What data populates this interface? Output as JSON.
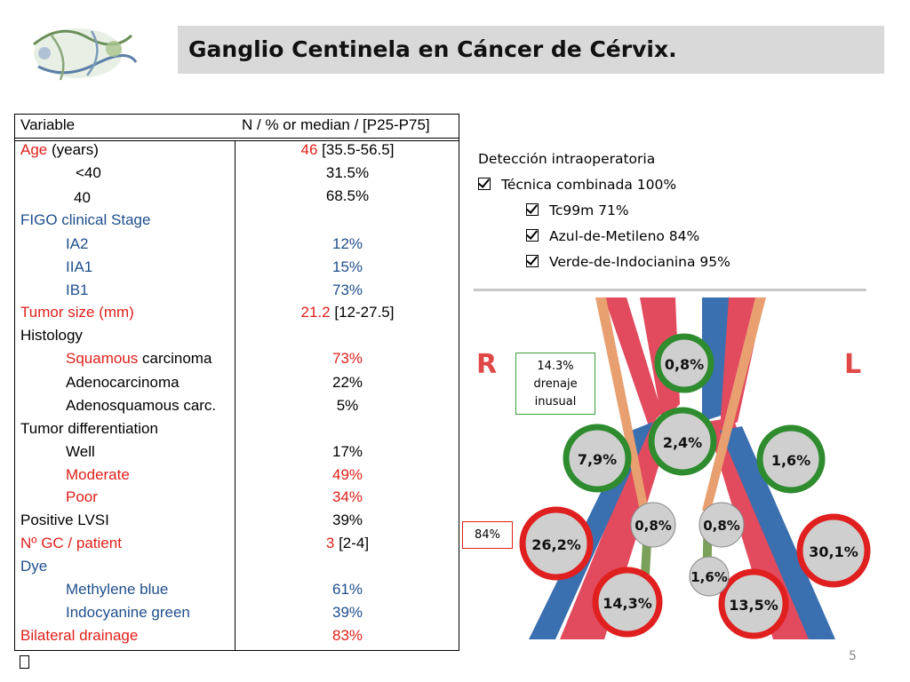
{
  "slide": {
    "title": "Ganglio Centinela en Cáncer de Cérvix.",
    "page_number": "5",
    "footer_glyph": "▯"
  },
  "table": {
    "header": {
      "variable": "Variable",
      "value": "N / % or median / [P25-P75]"
    },
    "rows": [
      {
        "label": "Age",
        "label_rest": " (years)",
        "value": "46",
        "value_rest": " [35.5-56.5]"
      },
      {
        "label": "<40",
        "value": "31.5%"
      },
      {
        "label": "40",
        "value": "68.5%"
      },
      {
        "label": "FIGO clinical Stage",
        "value": ""
      },
      {
        "label": "IA2",
        "value": "12%"
      },
      {
        "label": "IIA1",
        "value": "15%"
      },
      {
        "label": "IB1",
        "value": "73%"
      },
      {
        "label": "Tumor size (mm)",
        "value": "21.2",
        "value_rest": " [12-27.5]"
      },
      {
        "label": "Histology",
        "value": ""
      },
      {
        "label": "Squamous",
        "label_rest": " carcinoma",
        "value": "73%"
      },
      {
        "label": "Adenocarcinoma",
        "value": "22%"
      },
      {
        "label": "Adenosquamous carc.",
        "value": "5%"
      },
      {
        "label": "Tumor differentiation",
        "value": ""
      },
      {
        "label": "Well",
        "value": "17%"
      },
      {
        "label": "Moderate",
        "value": "49%"
      },
      {
        "label": "Poor",
        "value": "34%"
      },
      {
        "label": "Positive LVSI",
        "value": "39%"
      },
      {
        "label": "Nº GC / patient",
        "value": "3",
        "value_rest": " [2-4]"
      },
      {
        "label": "Dye",
        "value": ""
      },
      {
        "label": "Methylene blue",
        "value": "61%"
      },
      {
        "label": "Indocyanine green",
        "value": "39%"
      },
      {
        "label": "Bilateral drainage",
        "value": "83%"
      }
    ]
  },
  "detection": {
    "heading": "Detección intraoperatoria",
    "items": [
      "Técnica combinada 100%",
      "Tc99m 71%",
      "Azul-de-Metileno 84%",
      "Verde-de-Indocianina 95%"
    ]
  },
  "diagram": {
    "side_right": "R",
    "side_left": "L",
    "nodes": [
      {
        "value": "0,8%",
        "ring": "green"
      },
      {
        "value": "2,4%",
        "ring": "green"
      },
      {
        "value": "7,9%",
        "ring": "green"
      },
      {
        "value": "1,6%",
        "ring": "green"
      },
      {
        "value": "26,2%",
        "ring": "red"
      },
      {
        "value": "30,1%",
        "ring": "red"
      },
      {
        "value": "14,3%",
        "ring": "red"
      },
      {
        "value": "13,5%",
        "ring": "red"
      },
      {
        "value": "0,8%",
        "ring": "none"
      },
      {
        "value": "0,8%",
        "ring": "none"
      },
      {
        "value": "1,6%",
        "ring": "none"
      }
    ],
    "callout_green": [
      "14.3%",
      "drenaje",
      "inusual"
    ],
    "callout_red": "84%",
    "colors": {
      "green_ring": "#2e8b2e",
      "red_ring": "#e01f1f",
      "node_fill": "#cfcfcf",
      "artery": "#e24a5e",
      "vein": "#3a6fb0",
      "ureter": "#e8a070"
    }
  }
}
